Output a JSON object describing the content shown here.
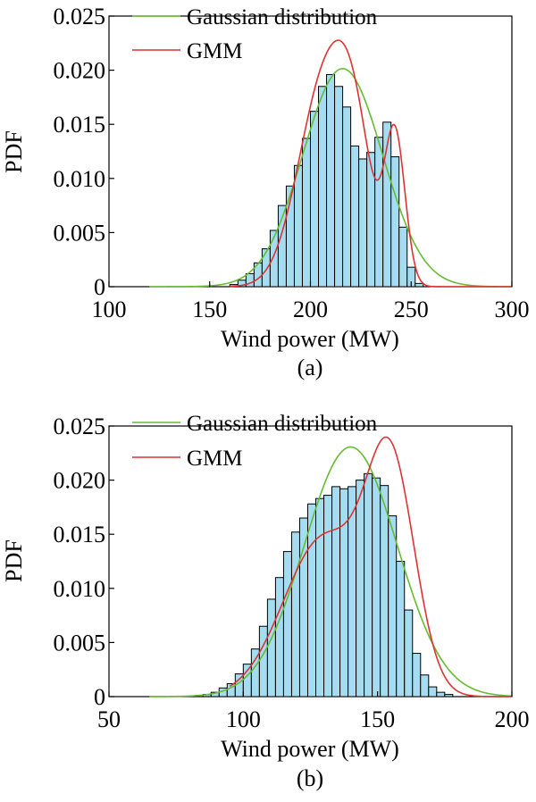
{
  "chart_data": [
    {
      "type": "bar",
      "caption": "(a)",
      "xlabel": "Wind power (MW)",
      "ylabel": "PDF",
      "xlim": [
        100,
        300
      ],
      "ylim": [
        0,
        0.025
      ],
      "xticks": [
        "100",
        "150",
        "200",
        "250",
        "300"
      ],
      "yticks": [
        "0",
        "0.005",
        "0.010",
        "0.015",
        "0.020",
        "0.025"
      ],
      "legend_position": "top-left",
      "grid": false,
      "colors": {
        "bars": "#a6dcef",
        "gaussian": "#66bb33",
        "gmm": "#dd3333"
      },
      "histogram": {
        "bin_width": 4,
        "start": 160,
        "values": [
          0.0002,
          0.0006,
          0.0012,
          0.0022,
          0.0035,
          0.0052,
          0.0075,
          0.0093,
          0.0112,
          0.0137,
          0.0162,
          0.0185,
          0.0196,
          0.0185,
          0.0166,
          0.013,
          0.0118,
          0.0124,
          0.0138,
          0.0152,
          0.012,
          0.0055,
          0.0018,
          0.0003
        ]
      },
      "series": [
        {
          "name": "Gaussian distribution",
          "kind": "gaussian",
          "mean": 216,
          "sd": 19.8
        },
        {
          "name": "GMM",
          "kind": "mixture",
          "components": [
            {
              "w": 0.61,
              "mean": 207,
              "sd": 13
            },
            {
              "w": 0.22,
              "mean": 222,
              "sd": 9
            },
            {
              "w": 0.17,
              "mean": 242,
              "sd": 5
            }
          ]
        }
      ]
    },
    {
      "type": "bar",
      "caption": "(b)",
      "xlabel": "Wind power (MW)",
      "ylabel": "PDF",
      "xlim": [
        50,
        200
      ],
      "ylim": [
        0,
        0.025
      ],
      "xticks": [
        "50",
        "100",
        "150",
        "200"
      ],
      "yticks": [
        "0",
        "0.005",
        "0.010",
        "0.015",
        "0.020",
        "0.025"
      ],
      "legend_position": "top-left",
      "grid": false,
      "colors": {
        "bars": "#a6dcef",
        "gaussian": "#66bb33",
        "gmm": "#dd3333"
      },
      "histogram": {
        "bin_width": 3,
        "start": 85,
        "values": [
          0.0002,
          0.0004,
          0.0008,
          0.0012,
          0.0021,
          0.003,
          0.0044,
          0.0065,
          0.009,
          0.011,
          0.0134,
          0.0152,
          0.0165,
          0.0178,
          0.0183,
          0.0186,
          0.0194,
          0.0192,
          0.0194,
          0.02,
          0.0206,
          0.0202,
          0.0195,
          0.0167,
          0.0125,
          0.008,
          0.004,
          0.002,
          0.0009,
          0.0004,
          0.0002
        ]
      },
      "series": [
        {
          "name": "Gaussian distribution",
          "kind": "gaussian",
          "mean": 140,
          "sd": 17.3
        },
        {
          "name": "GMM",
          "kind": "mixture",
          "components": [
            {
              "w": 0.55,
              "mean": 130,
              "sd": 15
            },
            {
              "w": 0.45,
              "mean": 155,
              "sd": 9
            }
          ]
        }
      ]
    }
  ]
}
